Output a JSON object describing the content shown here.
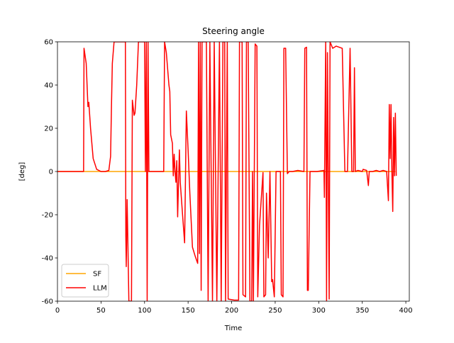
{
  "chart_data": {
    "type": "line",
    "title": "Steering angle",
    "x_label": "Time",
    "y_label": "[deg]",
    "xlim": [
      0,
      404
    ],
    "ylim": [
      -60,
      60
    ],
    "xticks": [
      0,
      50,
      100,
      150,
      200,
      250,
      300,
      350,
      400
    ],
    "yticks": [
      -60,
      -40,
      -20,
      0,
      20,
      40,
      60
    ],
    "legend": "lower left",
    "series": [
      {
        "name": "SF",
        "color": "#ffa500",
        "x": [
          0,
          388
        ],
        "values": [
          0,
          0
        ]
      },
      {
        "name": "LLM",
        "color": "#ff0000",
        "x": [
          0,
          30,
          30.5,
          33,
          35,
          36,
          38,
          41,
          45,
          50,
          55,
          59,
          61,
          62,
          63,
          65,
          78,
          78.5,
          79,
          80,
          82,
          85,
          86,
          88,
          89,
          91,
          93,
          100,
          101,
          102,
          103,
          104,
          105,
          122,
          123,
          125,
          128,
          129,
          130,
          132,
          133,
          134,
          135,
          136,
          137,
          138,
          140,
          141,
          144,
          146,
          148,
          150,
          152,
          155,
          158,
          161,
          162,
          163,
          164,
          165,
          166,
          171,
          173,
          175,
          178,
          180,
          183,
          186,
          188,
          190,
          192,
          193,
          195,
          196,
          203,
          208,
          209,
          212,
          213,
          216,
          217,
          219,
          221,
          223,
          224,
          225,
          227,
          229,
          230,
          232,
          236,
          237,
          239,
          240,
          242,
          244,
          246,
          247,
          249,
          251,
          253,
          256,
          257,
          259,
          260,
          262,
          264,
          266,
          270,
          276,
          283,
          284,
          286,
          287,
          288,
          290,
          298,
          306,
          306.5,
          308,
          309,
          310,
          312,
          313,
          316,
          320,
          327,
          330,
          333,
          336,
          338,
          340,
          341,
          342,
          345,
          350,
          351,
          355,
          357,
          358,
          362,
          366,
          370,
          374,
          378,
          380,
          381,
          382,
          383,
          384,
          385,
          386,
          387,
          388,
          389
        ],
        "values": [
          0,
          0,
          57,
          50,
          30,
          32,
          20,
          6,
          1,
          0,
          0,
          0.5,
          7,
          30,
          50,
          60,
          60,
          -30,
          -44,
          -13,
          -60,
          -60,
          33,
          26,
          27,
          40,
          60,
          60,
          0,
          60,
          -60,
          60,
          0,
          0,
          60,
          55,
          40,
          37,
          17,
          13,
          -2,
          8,
          0,
          -5,
          5,
          -21,
          10,
          -5,
          -22,
          -33,
          28,
          10,
          -10,
          -35,
          -39,
          -42.5,
          60,
          -38,
          60,
          -55,
          60,
          60,
          -60,
          60,
          -60,
          60,
          -60,
          60,
          -60,
          60,
          60,
          -60,
          60,
          -59,
          -59.5,
          -59.5,
          60,
          60,
          -57,
          -58,
          60,
          60,
          -60,
          -60,
          0,
          -60,
          59,
          58,
          -58,
          -25,
          -0.5,
          -58,
          -57,
          -10,
          -40,
          0,
          -51,
          -50,
          -58,
          0,
          0,
          0,
          -57,
          -58,
          57,
          57,
          -1,
          0,
          0,
          0.5,
          0,
          57,
          57.5,
          -55,
          -55,
          0,
          0,
          0.5,
          -12,
          60,
          -60,
          55,
          -59,
          60,
          57,
          58,
          57,
          0,
          0,
          57,
          0,
          0,
          48,
          0,
          0.5,
          0,
          1,
          0.5,
          -6.5,
          0,
          0,
          0.5,
          0,
          0.5,
          0,
          -13.5,
          31,
          6,
          31,
          0,
          -18.5,
          25,
          -2,
          27,
          -2
        ]
      }
    ]
  }
}
